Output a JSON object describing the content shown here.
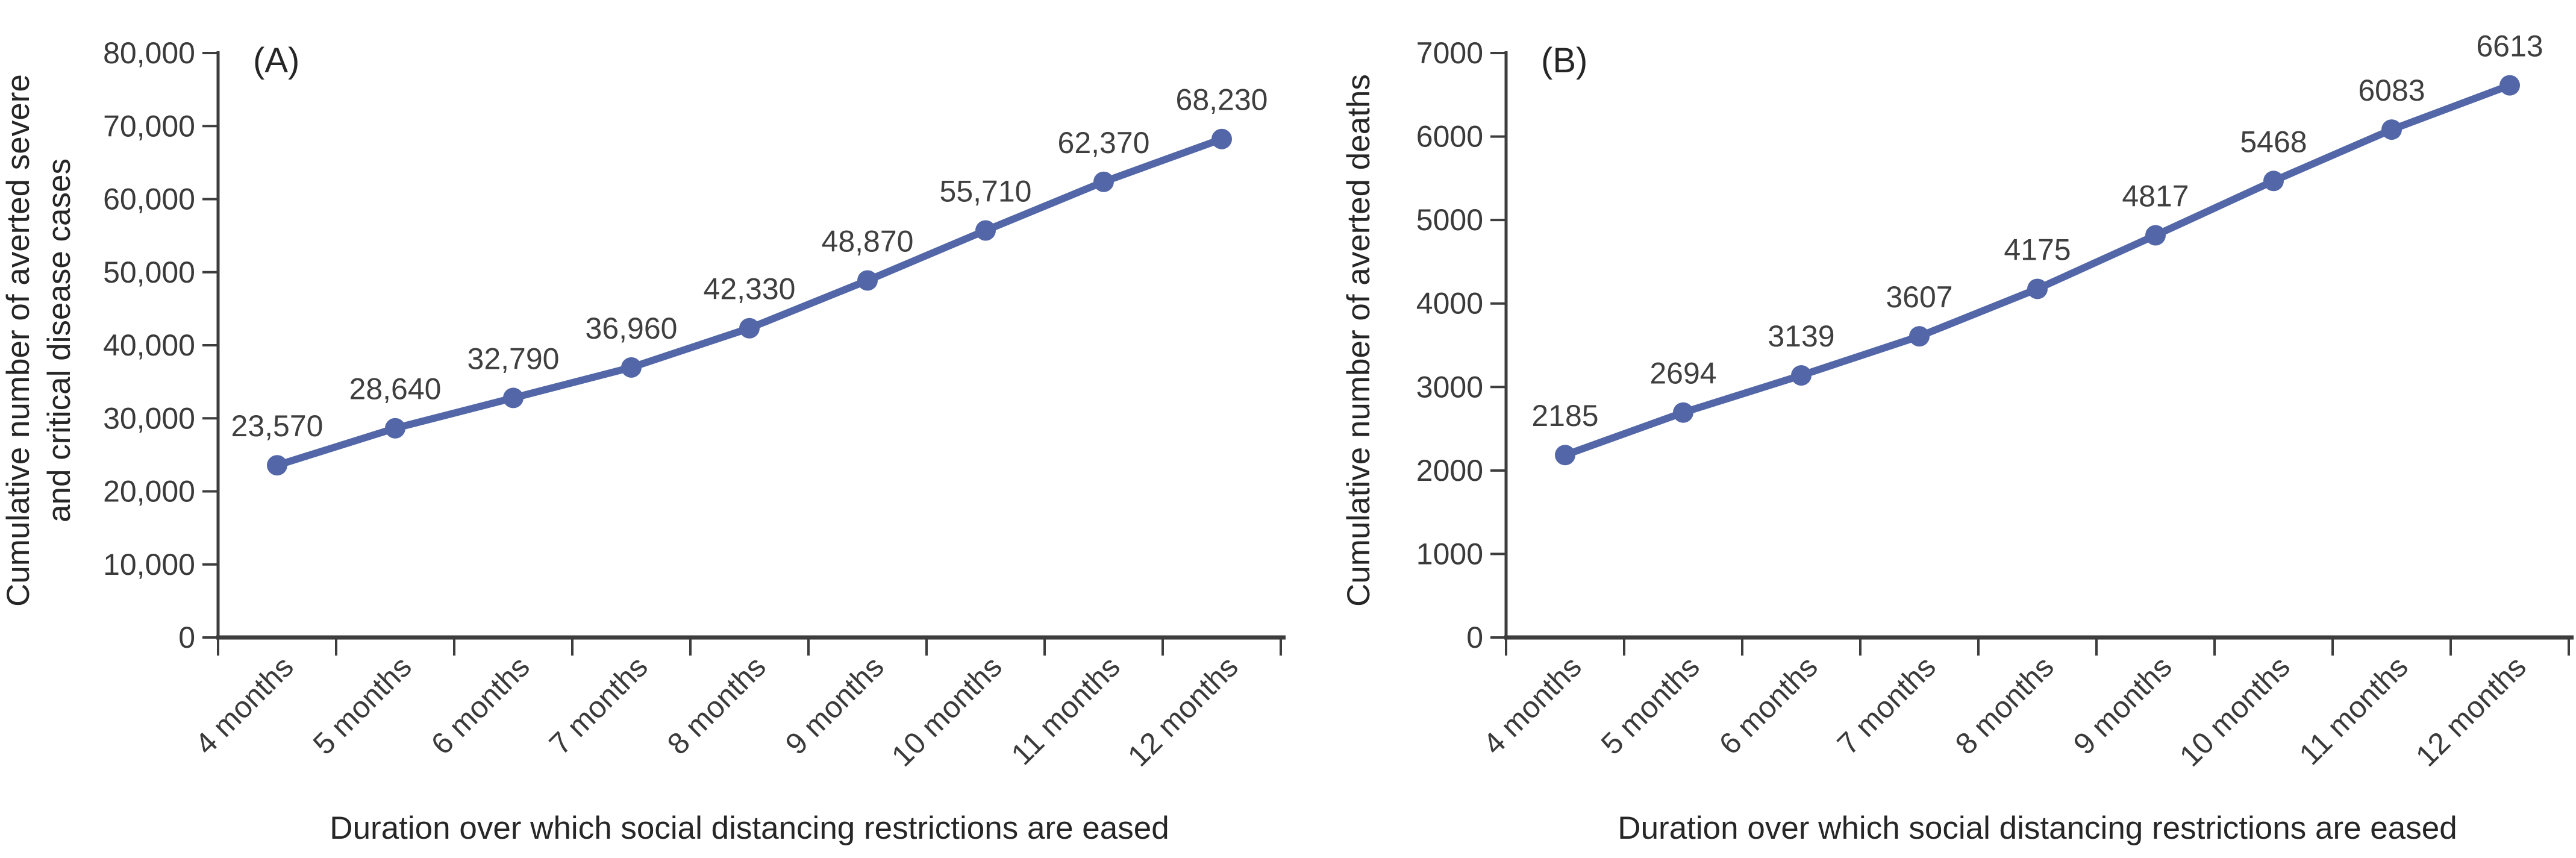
{
  "colors": {
    "line": "#5266A8",
    "marker": "#5266A8",
    "axis": "#3d3d3d",
    "tick_text": "#3a3a3a",
    "data_label_text": "#3f3f3f",
    "title_text": "#262626",
    "background": "#ffffff"
  },
  "chart_data": [
    {
      "type": "line",
      "panel_label": "(A)",
      "xlabel": "Duration over which social distancing restrictions are eased",
      "ylabel": "Cumulative number of averted severe and critical disease cases",
      "ylabel_lines": [
        "Cumulative number of averted severe",
        "and critical disease cases"
      ],
      "categories": [
        "4 months",
        "5 months",
        "6 months",
        "7 months",
        "8 months",
        "9 months",
        "10 months",
        "11 months",
        "12 months"
      ],
      "values": [
        23570,
        28640,
        32790,
        36960,
        42330,
        48870,
        55710,
        62370,
        68230
      ],
      "data_labels": [
        "23,570",
        "28,640",
        "32,790",
        "36,960",
        "42,330",
        "48,870",
        "55,710",
        "62,370",
        "68,230"
      ],
      "ylim": [
        0,
        80000
      ],
      "ytick_step": 10000,
      "ytick_labels": [
        "0",
        "10,000",
        "20,000",
        "30,000",
        "40,000",
        "50,000",
        "60,000",
        "70,000",
        "80,000"
      ],
      "grid": false,
      "legend": "none",
      "marker": "circle"
    },
    {
      "type": "line",
      "panel_label": "(B)",
      "xlabel": "Duration over which social distancing restrictions are eased",
      "ylabel": "Cumulative number of averted deaths",
      "ylabel_lines": [
        "Cumulative number of averted deaths"
      ],
      "categories": [
        "4 months",
        "5 months",
        "6 months",
        "7 months",
        "8 months",
        "9 months",
        "10 months",
        "11 months",
        "12 months"
      ],
      "values": [
        2185,
        2694,
        3139,
        3607,
        4175,
        4817,
        5468,
        6083,
        6613
      ],
      "data_labels": [
        "2185",
        "2694",
        "3139",
        "3607",
        "4175",
        "4817",
        "5468",
        "6083",
        "6613"
      ],
      "ylim": [
        0,
        7000
      ],
      "ytick_step": 1000,
      "ytick_labels": [
        "0",
        "1000",
        "2000",
        "3000",
        "4000",
        "5000",
        "6000",
        "7000"
      ],
      "grid": false,
      "legend": "none",
      "marker": "circle"
    }
  ]
}
